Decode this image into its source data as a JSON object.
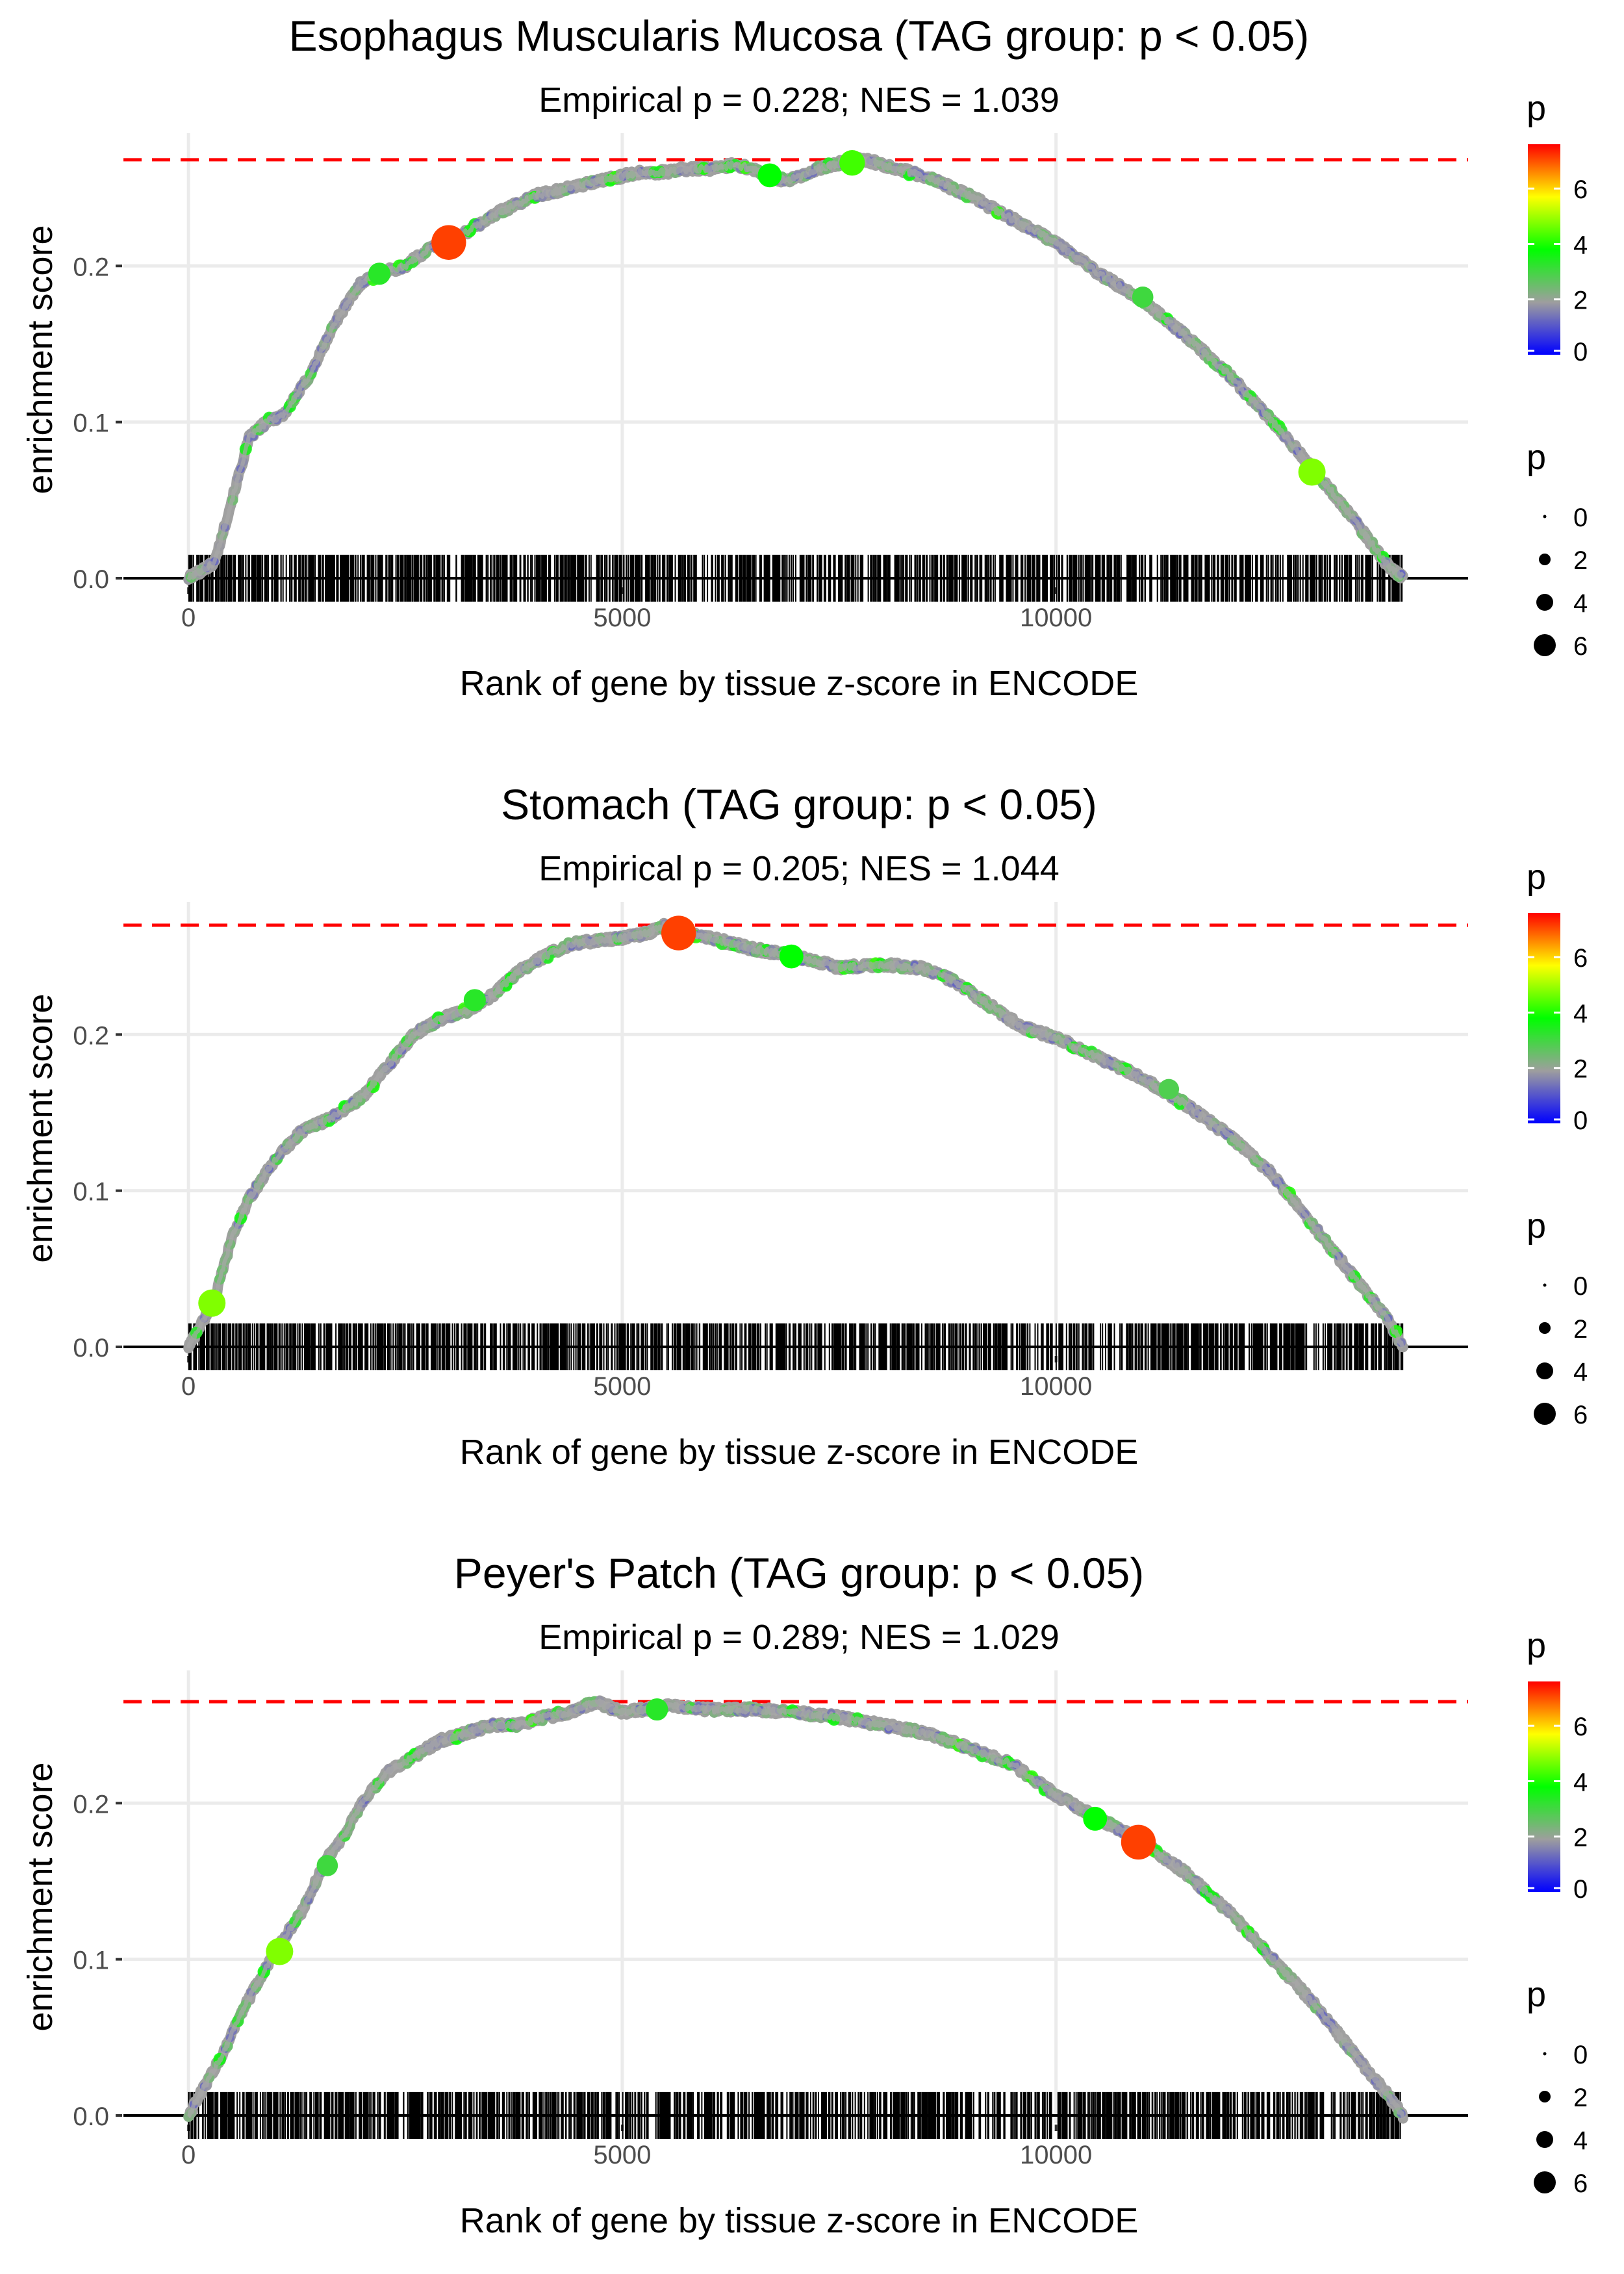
{
  "legend": {
    "color_title": "p",
    "size_title": "p",
    "color_ticks": [
      "0",
      "2",
      "4",
      "6"
    ],
    "size_ticks": [
      "0",
      "2",
      "4",
      "6"
    ],
    "gradient_colors": [
      "#0000ff",
      "#9e9e9e",
      "#00ff00",
      "#ffff00",
      "#ff0000"
    ]
  },
  "colors": {
    "threshold_line": "#ff0000",
    "curve": "#a0a0a0",
    "gridline": "#ebebeb",
    "tick_text": "#4d4d4d",
    "rug": "#000000"
  },
  "chart_data": [
    {
      "type": "line",
      "title": "Esophagus Muscularis Mucosa (TAG group: p < 0.05)",
      "subtitle": "Empirical p = 0.228; NES = 1.039",
      "xlabel": "Rank of gene by tissue z-score in ENCODE",
      "ylabel": "enrichment score",
      "xlim": [
        -750,
        14750
      ],
      "ylim": [
        -0.005,
        0.285
      ],
      "x_ticks": [
        0,
        5000,
        10000
      ],
      "x_tick_labels": [
        "0",
        "5000",
        "10000"
      ],
      "y_ticks": [
        0.0,
        0.1,
        0.2
      ],
      "y_tick_labels": [
        "0.0",
        "0.1",
        "0.2"
      ],
      "threshold": 0.268,
      "n_genes": 14000,
      "x": [
        0,
        300,
        500,
        700,
        900,
        1100,
        1400,
        1700,
        2000,
        2200,
        2500,
        2800,
        3000,
        3300,
        3600,
        4000,
        4400,
        4800,
        5200,
        5500,
        5700,
        6000,
        6300,
        6500,
        6800,
        7000,
        7300,
        7600,
        7800,
        8200,
        8600,
        9000,
        9500,
        10000,
        10500,
        11000,
        11500,
        12000,
        12500,
        13000,
        13400,
        13800,
        14000
      ],
      "y": [
        0,
        0.01,
        0.05,
        0.09,
        0.1,
        0.105,
        0.13,
        0.165,
        0.19,
        0.195,
        0.2,
        0.212,
        0.215,
        0.225,
        0.235,
        0.245,
        0.25,
        0.255,
        0.26,
        0.26,
        0.262,
        0.262,
        0.265,
        0.262,
        0.255,
        0.256,
        0.263,
        0.267,
        0.268,
        0.262,
        0.255,
        0.245,
        0.23,
        0.215,
        0.195,
        0.178,
        0.155,
        0.13,
        0.1,
        0.068,
        0.04,
        0.01,
        0
      ],
      "highlights": [
        {
          "x": 3000,
          "y": 0.215,
          "p": 7.2
        },
        {
          "x": 12950,
          "y": 0.068,
          "p": 5.0
        },
        {
          "x": 7650,
          "y": 0.266,
          "p": 4.5
        },
        {
          "x": 6700,
          "y": 0.258,
          "p": 4.0
        },
        {
          "x": 2200,
          "y": 0.195,
          "p": 3.5
        },
        {
          "x": 11000,
          "y": 0.18,
          "p": 3.2
        }
      ]
    },
    {
      "type": "line",
      "title": "Stomach (TAG group: p < 0.05)",
      "subtitle": "Empirical p = 0.205; NES = 1.044",
      "xlabel": "Rank of gene by tissue z-score in ENCODE",
      "ylabel": "enrichment score",
      "xlim": [
        -750,
        14750
      ],
      "ylim": [
        -0.005,
        0.285
      ],
      "x_ticks": [
        0,
        5000,
        10000
      ],
      "x_tick_labels": [
        "0",
        "5000",
        "10000"
      ],
      "y_ticks": [
        0.0,
        0.1,
        0.2
      ],
      "y_tick_labels": [
        "0.0",
        "0.1",
        "0.2"
      ],
      "threshold": 0.27,
      "n_genes": 14000,
      "x": [
        0,
        200,
        300,
        500,
        700,
        1000,
        1300,
        1700,
        2000,
        2300,
        2600,
        2900,
        3200,
        3500,
        3800,
        4100,
        4400,
        4700,
        5000,
        5300,
        5500,
        5700,
        6000,
        6500,
        7000,
        7500,
        8000,
        8500,
        8800,
        9200,
        9600,
        10000,
        10500,
        11000,
        11500,
        12000,
        12500,
        13000,
        13500,
        13800,
        14000
      ],
      "y": [
        0,
        0.02,
        0.03,
        0.07,
        0.095,
        0.12,
        0.138,
        0.148,
        0.16,
        0.18,
        0.2,
        0.21,
        0.215,
        0.225,
        0.24,
        0.25,
        0.258,
        0.26,
        0.262,
        0.265,
        0.27,
        0.265,
        0.262,
        0.255,
        0.25,
        0.243,
        0.245,
        0.242,
        0.235,
        0.22,
        0.205,
        0.198,
        0.185,
        0.172,
        0.155,
        0.135,
        0.11,
        0.075,
        0.04,
        0.02,
        0
      ],
      "highlights": [
        {
          "x": 5650,
          "y": 0.265,
          "p": 7.2
        },
        {
          "x": 270,
          "y": 0.028,
          "p": 5.0
        },
        {
          "x": 6950,
          "y": 0.25,
          "p": 4.0
        },
        {
          "x": 3300,
          "y": 0.222,
          "p": 3.5
        },
        {
          "x": 11300,
          "y": 0.165,
          "p": 3.0
        }
      ]
    },
    {
      "type": "line",
      "title": "Peyer's Patch (TAG group: p < 0.05)",
      "subtitle": "Empirical p = 0.289; NES = 1.029",
      "xlabel": "Rank of gene by tissue z-score in ENCODE",
      "ylabel": "enrichment score",
      "xlim": [
        -750,
        14750
      ],
      "ylim": [
        -0.005,
        0.285
      ],
      "x_ticks": [
        0,
        5000,
        10000
      ],
      "x_tick_labels": [
        "0",
        "5000",
        "10000"
      ],
      "y_ticks": [
        0.0,
        0.1,
        0.2
      ],
      "y_tick_labels": [
        "0.0",
        "0.1",
        "0.2"
      ],
      "threshold": 0.265,
      "n_genes": 14000,
      "x": [
        0,
        200,
        400,
        600,
        800,
        1000,
        1300,
        1600,
        1800,
        2000,
        2300,
        2600,
        2900,
        3200,
        3500,
        3800,
        4100,
        4400,
        4700,
        5000,
        5500,
        6000,
        6500,
        7000,
        7500,
        8000,
        8500,
        9000,
        9500,
        10000,
        10500,
        11000,
        11500,
        12000,
        12500,
        13000,
        13500,
        13800,
        14000
      ],
      "y": [
        0,
        0.02,
        0.04,
        0.065,
        0.085,
        0.105,
        0.13,
        0.165,
        0.18,
        0.2,
        0.22,
        0.23,
        0.24,
        0.245,
        0.25,
        0.25,
        0.255,
        0.258,
        0.265,
        0.258,
        0.262,
        0.26,
        0.26,
        0.258,
        0.255,
        0.25,
        0.245,
        0.235,
        0.225,
        0.205,
        0.19,
        0.175,
        0.155,
        0.13,
        0.1,
        0.07,
        0.035,
        0.015,
        0
      ],
      "highlights": [
        {
          "x": 10950,
          "y": 0.175,
          "p": 7.2
        },
        {
          "x": 1050,
          "y": 0.105,
          "p": 5.0
        },
        {
          "x": 10450,
          "y": 0.19,
          "p": 4.0
        },
        {
          "x": 5400,
          "y": 0.26,
          "p": 3.5
        },
        {
          "x": 1600,
          "y": 0.16,
          "p": 3.2
        }
      ]
    }
  ]
}
